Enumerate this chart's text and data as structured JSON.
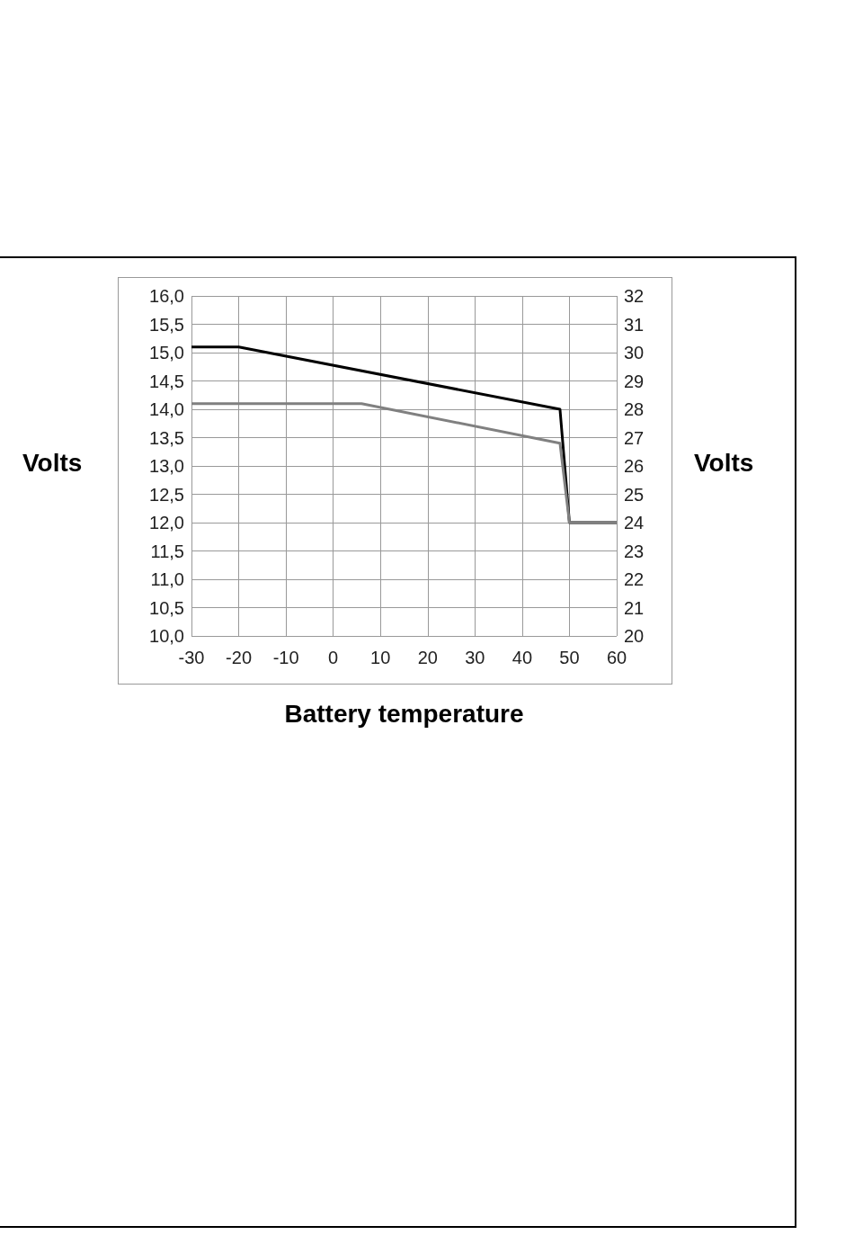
{
  "chart_data": {
    "type": "line",
    "xlabel": "Battery temperature",
    "ylabel": "Volts",
    "y2label": "Volts",
    "series": [
      {
        "color": "#000000",
        "x": [
          -30,
          -20,
          48,
          50,
          60
        ],
        "values": [
          15.1,
          15.1,
          14.0,
          12.0,
          12.0
        ]
      },
      {
        "color": "#808080",
        "x": [
          -30,
          6,
          48,
          50,
          60
        ],
        "values": [
          14.1,
          14.1,
          13.4,
          12.0,
          12.0
        ]
      }
    ],
    "xlim": [
      -30,
      60
    ],
    "xticks": [
      -30,
      -20,
      -10,
      0,
      10,
      20,
      30,
      40,
      50,
      60
    ],
    "ylim": [
      10,
      16
    ],
    "yticks": [
      {
        "value": 10,
        "label": "10,0"
      },
      {
        "value": 10.5,
        "label": "10,5"
      },
      {
        "value": 11,
        "label": "11,0"
      },
      {
        "value": 11.5,
        "label": "11,5"
      },
      {
        "value": 12,
        "label": "12,0"
      },
      {
        "value": 12.5,
        "label": "12,5"
      },
      {
        "value": 13,
        "label": "13,0"
      },
      {
        "value": 13.5,
        "label": "13,5"
      },
      {
        "value": 14,
        "label": "14,0"
      },
      {
        "value": 14.5,
        "label": "14,5"
      },
      {
        "value": 15,
        "label": "15,0"
      },
      {
        "value": 15.5,
        "label": "15,5"
      },
      {
        "value": 16,
        "label": "16,0"
      }
    ],
    "y2lim": [
      20,
      32
    ],
    "y2ticks": [
      20,
      21,
      22,
      23,
      24,
      25,
      26,
      27,
      28,
      29,
      30,
      31,
      32
    ],
    "grid": true,
    "marker": "none",
    "line_style": "solid"
  }
}
